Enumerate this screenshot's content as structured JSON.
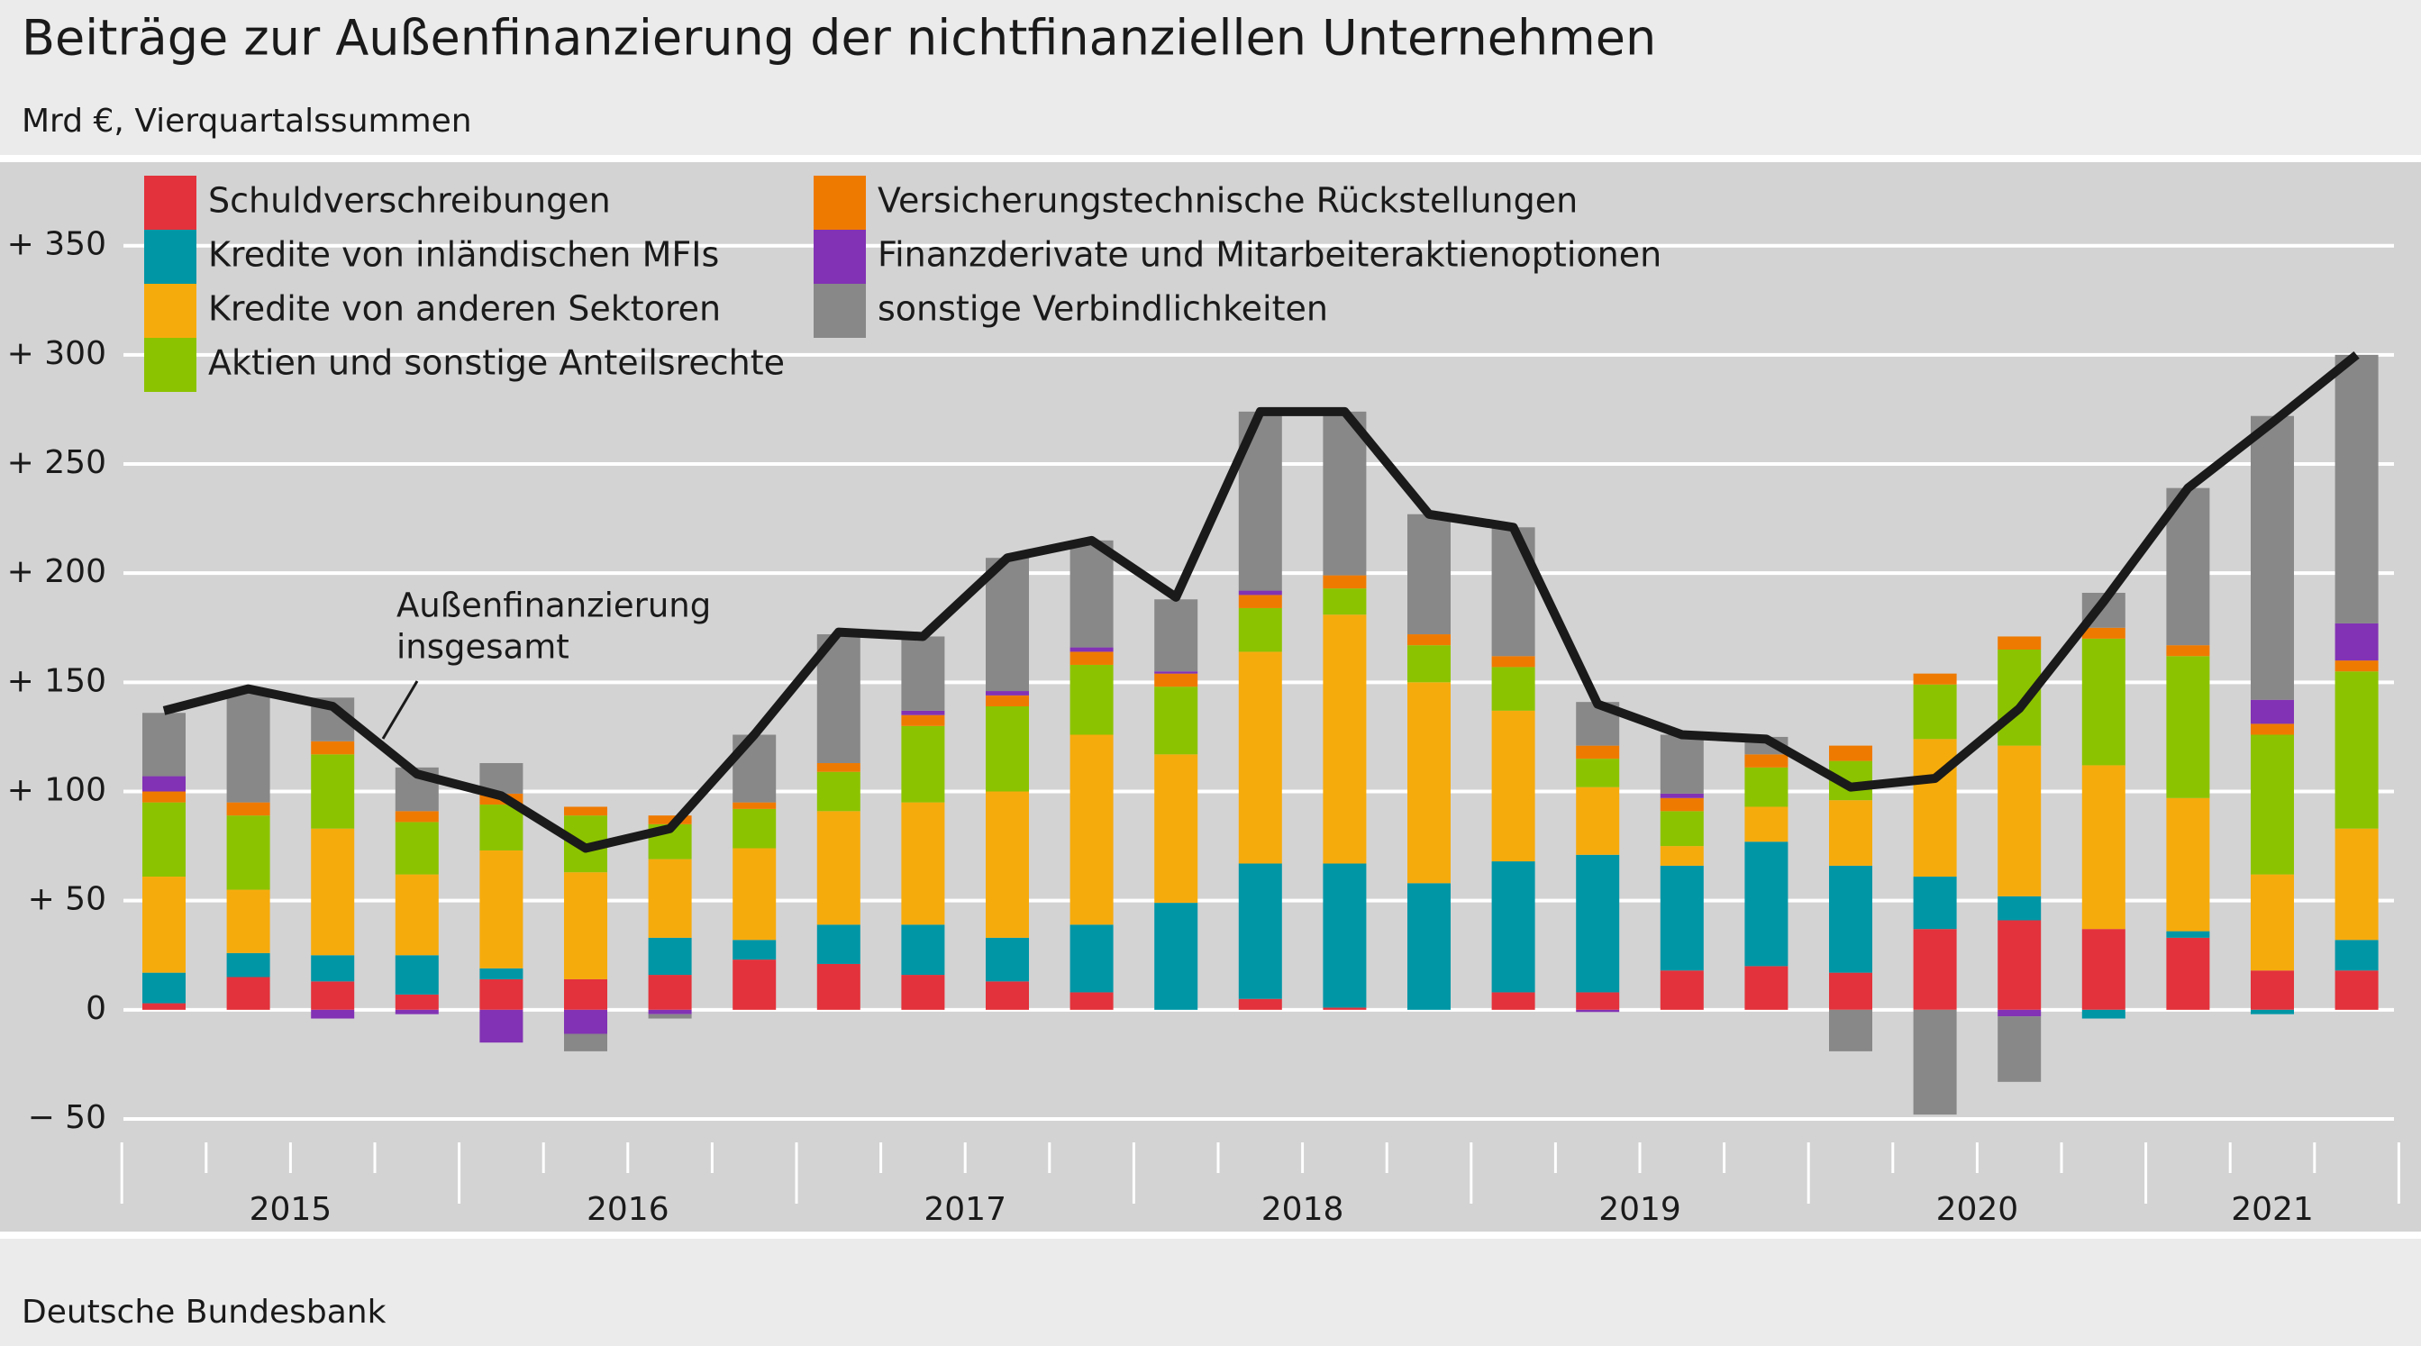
{
  "chart_data": {
    "type": "stacked_bar",
    "title": "Beiträge zur Außenfinanzierung der nichtfinanziellen Unternehmen",
    "subtitle": "Mrd €, Vierquartalssummen",
    "source": "Deutsche Bundesbank",
    "categories": [
      null,
      null,
      null,
      null,
      null,
      null,
      null,
      null,
      null,
      null,
      null,
      null,
      null,
      null,
      null,
      null,
      null,
      null,
      null,
      null,
      null,
      null,
      null,
      null,
      null,
      null,
      null
    ],
    "x_groups": [
      {
        "label": "2015",
        "count": 4
      },
      {
        "label": "2016",
        "count": 4
      },
      {
        "label": "2017",
        "count": 4
      },
      {
        "label": "2018",
        "count": 4
      },
      {
        "label": "2019",
        "count": 4
      },
      {
        "label": "2020",
        "count": 4
      },
      {
        "label": "2021",
        "count": 3
      }
    ],
    "ylim": [
      -50,
      380
    ],
    "yticks": [
      {
        "value": -50,
        "label": "−  50"
      },
      0,
      {
        "value": 50,
        "label": "+  50"
      },
      {
        "value": 100,
        "label": "+ 100"
      },
      {
        "value": 150,
        "label": "+ 150"
      },
      {
        "value": 200,
        "label": "+ 200"
      },
      {
        "value": 250,
        "label": "+ 250"
      },
      {
        "value": 300,
        "label": "+ 300"
      },
      {
        "value": 350,
        "label": "+ 350"
      }
    ],
    "grid": true,
    "series": [
      {
        "name": "Schuldverschreibungen",
        "color": "#e3323b",
        "values": [
          3,
          15,
          13,
          7,
          14,
          14,
          16,
          23,
          21,
          16,
          13,
          8,
          0,
          5,
          1,
          0,
          8,
          8,
          18,
          20,
          17,
          37,
          41,
          37,
          33,
          18,
          18
        ]
      },
      {
        "name": "Kredite von inländischen MFIs",
        "color": "#0096a6",
        "values": [
          14,
          11,
          12,
          18,
          5,
          0,
          17,
          9,
          18,
          23,
          20,
          31,
          49,
          62,
          66,
          58,
          60,
          63,
          48,
          57,
          49,
          24,
          11,
          -4,
          3,
          -2,
          14
        ]
      },
      {
        "name": "Kredite von anderen Sektoren",
        "color": "#f6ab0c",
        "values": [
          44,
          29,
          58,
          37,
          54,
          49,
          36,
          42,
          52,
          56,
          67,
          87,
          68,
          97,
          114,
          92,
          69,
          31,
          9,
          16,
          30,
          63,
          69,
          75,
          61,
          44,
          51
        ]
      },
      {
        "name": "Aktien und sonstige Anteilsrechte",
        "color": "#8cc300",
        "values": [
          34,
          34,
          34,
          24,
          21,
          26,
          16,
          18,
          18,
          35,
          39,
          32,
          31,
          20,
          12,
          17,
          20,
          13,
          16,
          18,
          18,
          25,
          44,
          58,
          65,
          64,
          72
        ]
      },
      {
        "name": "Versicherungstechnische Rückstellungen",
        "color": "#ef7a00",
        "values": [
          5,
          6,
          6,
          5,
          5,
          4,
          4,
          3,
          4,
          5,
          5,
          6,
          6,
          6,
          6,
          5,
          5,
          6,
          6,
          6,
          7,
          5,
          6,
          5,
          5,
          5,
          5
        ]
      },
      {
        "name": "Finanzderivate und Mitarbeiteraktienoptionen",
        "color": "#8232b4",
        "values": [
          7,
          0,
          -4,
          -2,
          -15,
          -11,
          -2,
          0,
          0,
          2,
          2,
          2,
          1,
          2,
          0,
          0,
          0,
          -1,
          2,
          0,
          0,
          0,
          -3,
          0,
          0,
          11,
          17
        ]
      },
      {
        "name": "sonstige Verbindlichkeiten",
        "color": "#888888",
        "values": [
          29,
          51,
          20,
          20,
          14,
          -8,
          -2,
          31,
          59,
          34,
          61,
          49,
          33,
          82,
          75,
          55,
          59,
          20,
          27,
          8,
          -19,
          -48,
          -30,
          16,
          72,
          130,
          123
        ]
      }
    ],
    "total": {
      "color": "#1a1a1a",
      "values": [
        137,
        147,
        139,
        108,
        98,
        74,
        83,
        126,
        173,
        171,
        207,
        215,
        189,
        274,
        274,
        227,
        221,
        140,
        126,
        124,
        102,
        106,
        138,
        187,
        239,
        269,
        300
      ]
    },
    "annotation": [
      "Außenfinanzierung",
      "insgesamt"
    ]
  }
}
